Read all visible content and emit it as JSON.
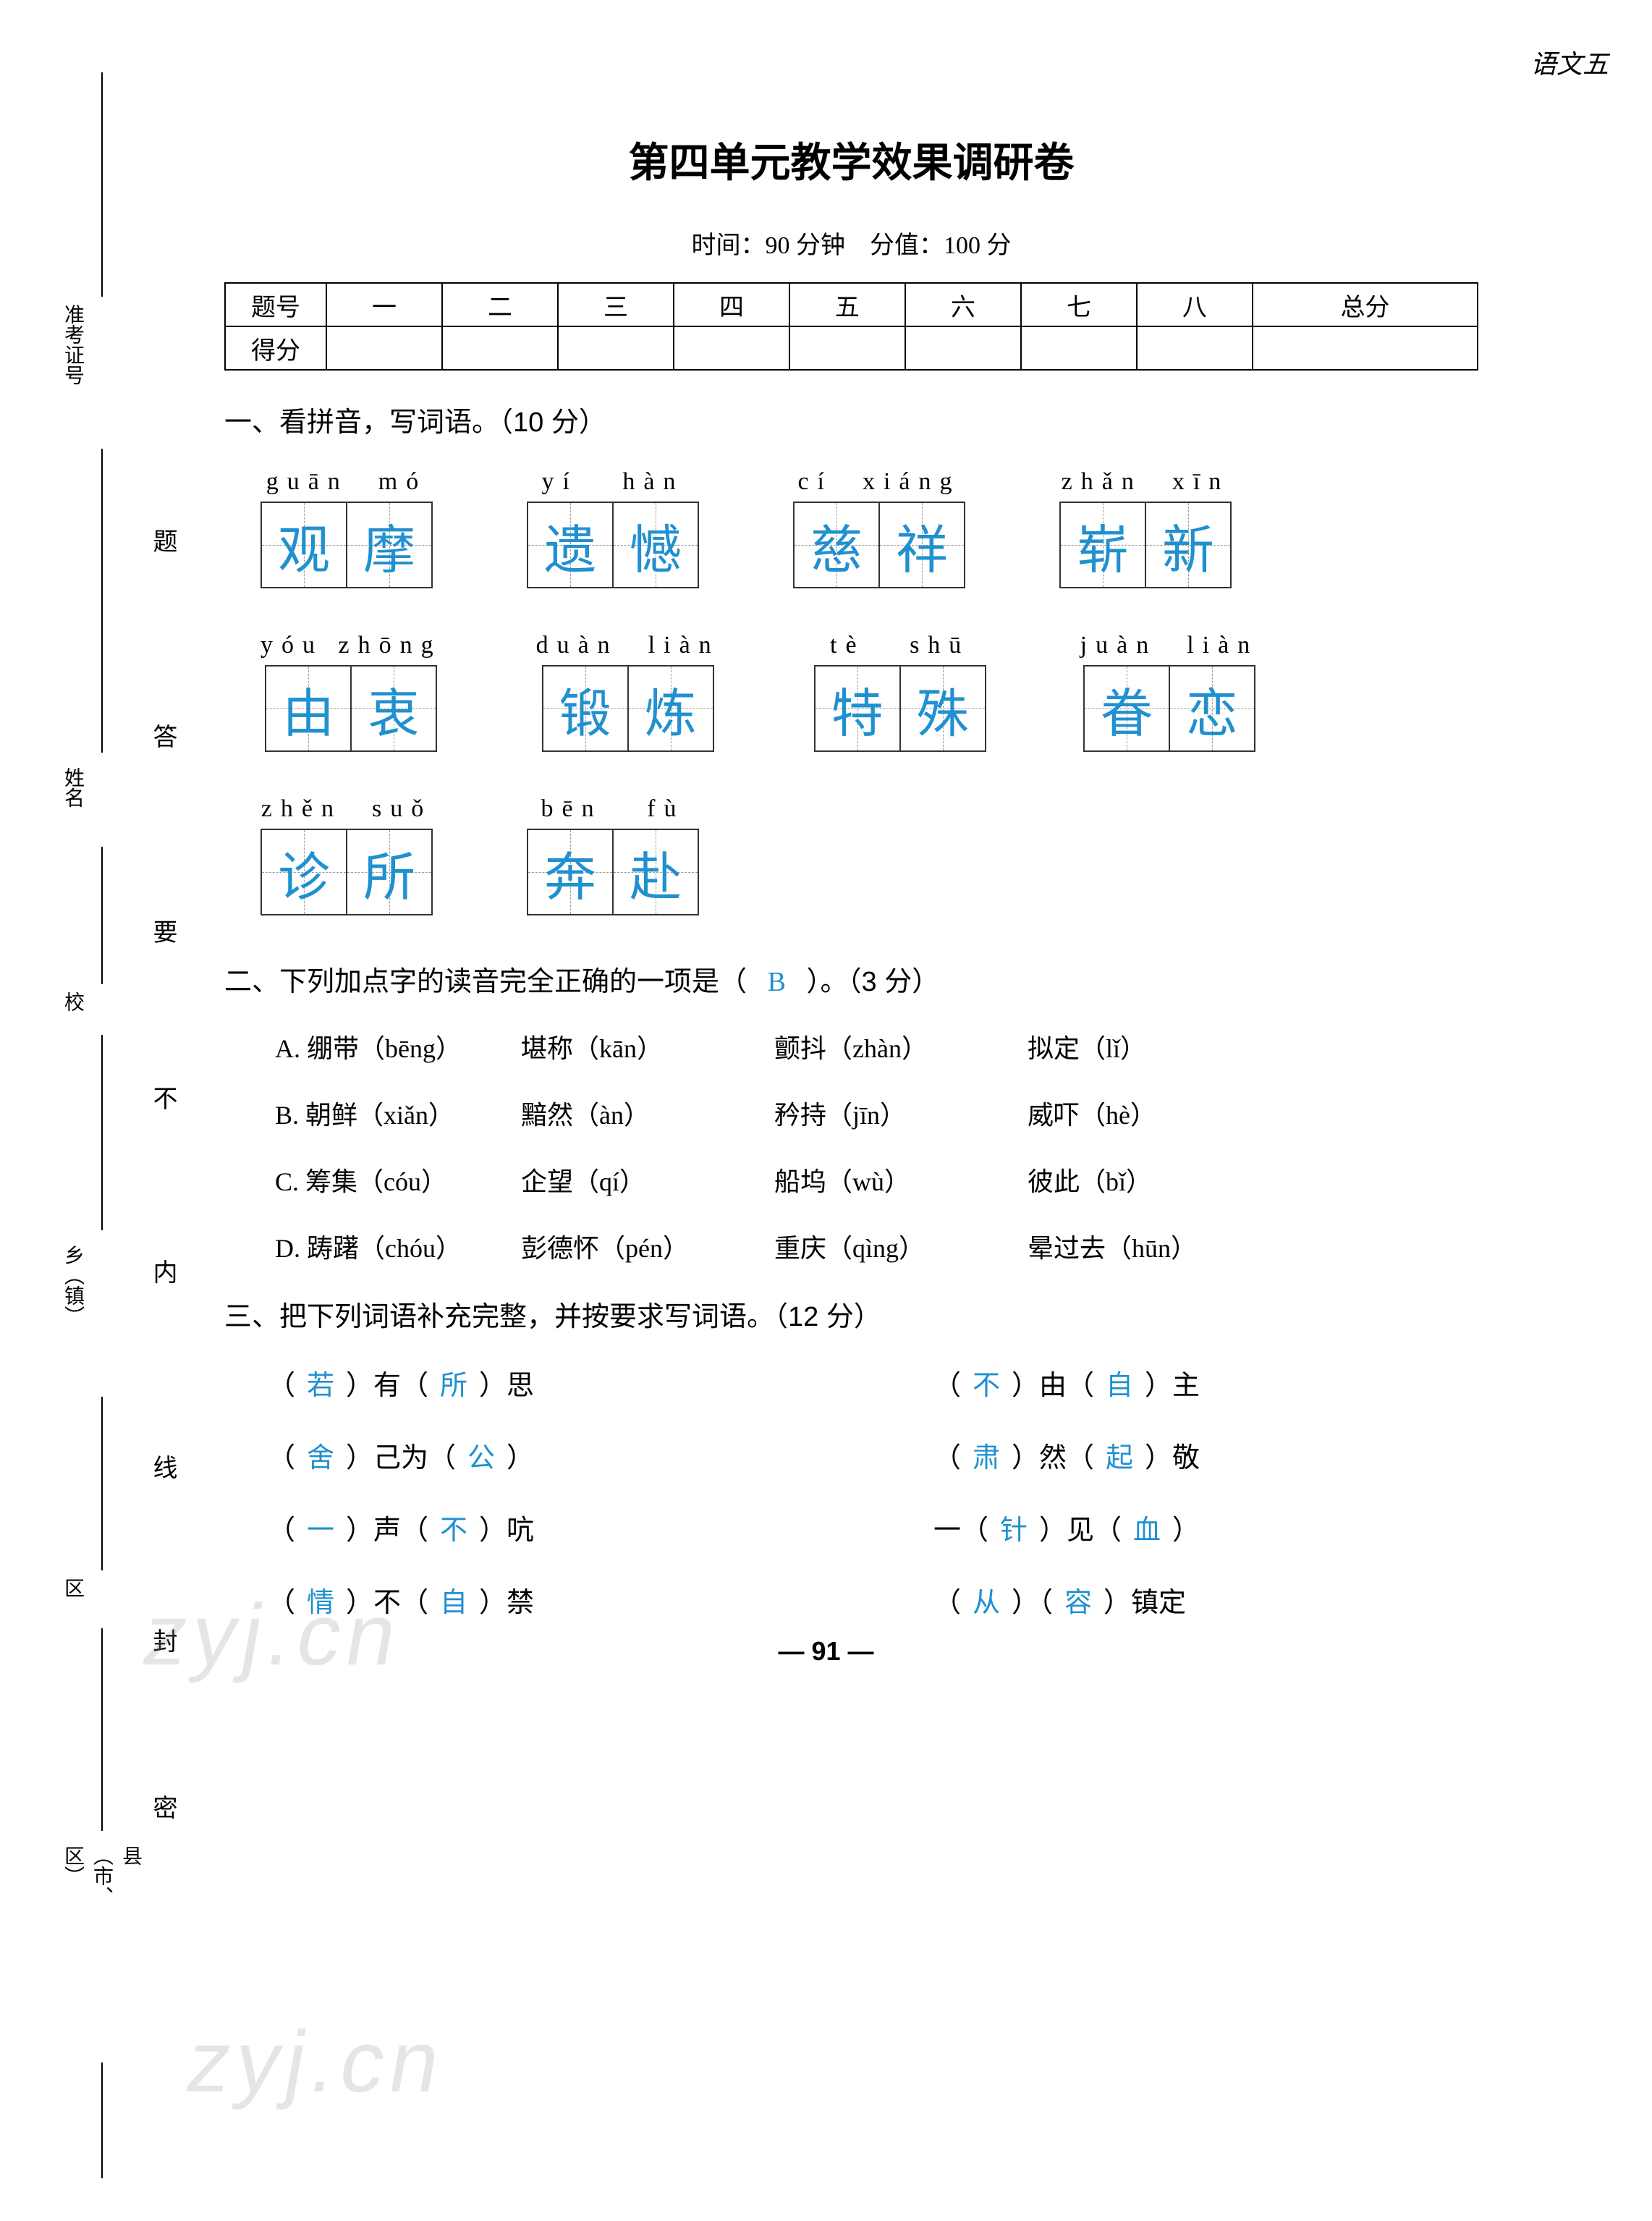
{
  "header": {
    "topRight": "语文五",
    "title": "第四单元教学效果调研卷",
    "time": "时间：90 分钟",
    "score": "分值：100 分"
  },
  "margin": {
    "col1": [
      "准考证号",
      "姓名",
      "校",
      "乡（镇）",
      "区",
      "县（市、区）"
    ],
    "col2": [
      "题",
      "答",
      "要",
      "不",
      "内",
      "线",
      "封",
      "密"
    ]
  },
  "scoreTable": {
    "row1Label": "题号",
    "row2Label": "得分",
    "cols": [
      "一",
      "二",
      "三",
      "四",
      "五",
      "六",
      "七",
      "八",
      "总分"
    ]
  },
  "q1": {
    "heading": "一、看拼音，写词语。（10 分）",
    "rows": [
      [
        {
          "pinyin": "guān  mó",
          "chars": [
            "观",
            "摩"
          ]
        },
        {
          "pinyin": "yí   hàn",
          "chars": [
            "遗",
            "憾"
          ]
        },
        {
          "pinyin": "cí  xiáng",
          "chars": [
            "慈",
            "祥"
          ]
        },
        {
          "pinyin": "zhǎn  xīn",
          "chars": [
            "崭",
            "新"
          ]
        }
      ],
      [
        {
          "pinyin": "yóu zhōng",
          "chars": [
            "由",
            "衷"
          ]
        },
        {
          "pinyin": "duàn  liàn",
          "chars": [
            "锻",
            "炼"
          ]
        },
        {
          "pinyin": "tè   shū",
          "chars": [
            "特",
            "殊"
          ]
        },
        {
          "pinyin": "juàn  liàn",
          "chars": [
            "眷",
            "恋"
          ]
        }
      ],
      [
        {
          "pinyin": "zhěn  suǒ",
          "chars": [
            "诊",
            "所"
          ]
        },
        {
          "pinyin": "bēn   fù",
          "chars": [
            "奔",
            "赴"
          ]
        }
      ]
    ]
  },
  "q2": {
    "heading_pre": "二、下列加点字的读音完全正确的一项是（",
    "answer": "B",
    "heading_post": "）。（3 分）",
    "options": [
      {
        "label": "A.",
        "items": [
          "绷带（bēng）",
          "堪称（kān）",
          "颤抖（zhàn）",
          "拟定（lǐ）"
        ]
      },
      {
        "label": "B.",
        "items": [
          "朝鲜（xiǎn）",
          "黯然（àn）",
          "矜持（jīn）",
          "威吓（hè）"
        ]
      },
      {
        "label": "C.",
        "items": [
          "筹集（cóu）",
          "企望（qí）",
          "船坞（wù）",
          "彼此（bǐ）"
        ]
      },
      {
        "label": "D.",
        "items": [
          "踌躇（chóu）",
          "彭德怀（pén）",
          "重庆（qìng）",
          "晕过去（hūn）"
        ]
      }
    ]
  },
  "q3": {
    "heading": "三、把下列词语补充完整，并按要求写词语。（12 分）",
    "rows": [
      {
        "left": {
          "p": [
            "（",
            "若",
            "）有（",
            "所",
            "）思"
          ]
        },
        "right": {
          "p": [
            "（",
            "不",
            "）由（",
            "自",
            "）主"
          ]
        }
      },
      {
        "left": {
          "p": [
            "（",
            "舍",
            "）己为（",
            "公",
            "）"
          ]
        },
        "right": {
          "p": [
            "（",
            "肃",
            "）然（",
            "起",
            "）敬"
          ]
        }
      },
      {
        "left": {
          "p": [
            "（",
            "一",
            "）声（",
            "不",
            "）吭"
          ]
        },
        "right": {
          "p": [
            "一（",
            "针",
            "）见（",
            "血",
            "）"
          ]
        }
      },
      {
        "left": {
          "p": [
            "（",
            "情",
            "）不（",
            "自",
            "）禁"
          ]
        },
        "right": {
          "p": [
            "（",
            "从",
            "）（",
            "容",
            "）镇定"
          ]
        }
      }
    ]
  },
  "pageNum": "91",
  "watermark": "zyj.cn",
  "colors": {
    "answer": "#2090d0",
    "text": "#000000",
    "watermark": "rgba(150,150,150,0.25)"
  }
}
